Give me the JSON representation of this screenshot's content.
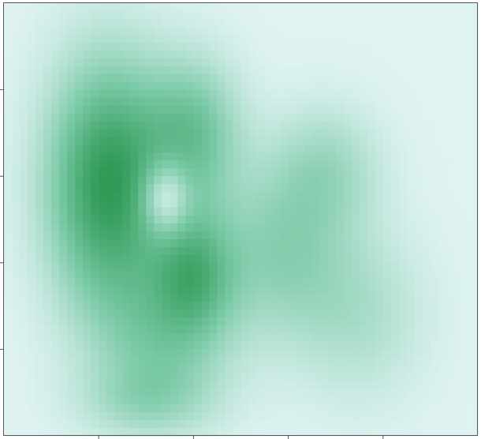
{
  "chart_data": {
    "type": "heatmap",
    "title": "",
    "xlabel": "",
    "ylabel": "",
    "x_ticks": 4,
    "y_ticks": 4,
    "colors": {
      "low": "#e0f3f3",
      "mid": "#7ccaa8",
      "high": "#2e9a55",
      "frame": "#555555",
      "background": "#ffffff"
    },
    "density_components": [
      {
        "x": 0.22,
        "y": 0.42,
        "sx": 0.09,
        "sy": 0.2,
        "w": 1.0
      },
      {
        "x": 0.4,
        "y": 0.3,
        "sx": 0.07,
        "sy": 0.12,
        "w": 0.55
      },
      {
        "x": 0.4,
        "y": 0.62,
        "sx": 0.06,
        "sy": 0.1,
        "w": 0.6
      },
      {
        "x": 0.34,
        "y": 0.78,
        "sx": 0.1,
        "sy": 0.12,
        "w": 0.4
      },
      {
        "x": 0.58,
        "y": 0.57,
        "sx": 0.1,
        "sy": 0.14,
        "w": 0.4
      },
      {
        "x": 0.68,
        "y": 0.38,
        "sx": 0.08,
        "sy": 0.1,
        "w": 0.3
      },
      {
        "x": 0.75,
        "y": 0.72,
        "sx": 0.1,
        "sy": 0.14,
        "w": 0.25
      },
      {
        "x": 0.3,
        "y": 0.92,
        "sx": 0.1,
        "sy": 0.06,
        "w": 0.25
      },
      {
        "x": 0.34,
        "y": 0.45,
        "sx": 0.035,
        "sy": 0.06,
        "w": -0.55
      }
    ],
    "grid": false,
    "legend": "none"
  }
}
